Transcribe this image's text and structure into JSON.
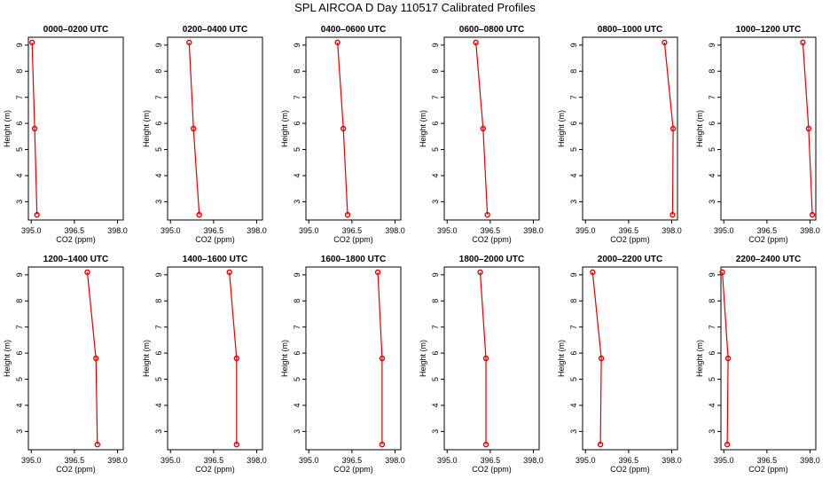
{
  "title": "SPL AIRCOA D  Day 110517  Calibrated Profiles",
  "chart_data": [
    {
      "type": "line",
      "title": "0000–0200 UTC",
      "xlabel": "CO2 (ppm)",
      "ylabel": "Height (m)",
      "xlim": [
        394.9,
        398.2
      ],
      "ylim": [
        2.3,
        9.3
      ],
      "x_ticks": [
        "395.0",
        "396.5",
        "398.0"
      ],
      "y_ticks": [
        "3",
        "4",
        "5",
        "6",
        "7",
        "8",
        "9"
      ],
      "color": "#dd0000",
      "points": [
        {
          "x": 395.03,
          "y": 9.1
        },
        {
          "x": 395.12,
          "y": 5.8
        },
        {
          "x": 395.2,
          "y": 2.5
        }
      ]
    },
    {
      "type": "line",
      "title": "0200–0400 UTC",
      "xlabel": "CO2 (ppm)",
      "ylabel": "Height (m)",
      "xlim": [
        394.9,
        398.2
      ],
      "ylim": [
        2.3,
        9.3
      ],
      "x_ticks": [
        "395.0",
        "396.5",
        "398.0"
      ],
      "y_ticks": [
        "3",
        "4",
        "5",
        "6",
        "7",
        "8",
        "9"
      ],
      "color": "#dd0000",
      "points": [
        {
          "x": 395.65,
          "y": 9.1
        },
        {
          "x": 395.8,
          "y": 5.8
        },
        {
          "x": 396.0,
          "y": 2.5
        }
      ]
    },
    {
      "type": "line",
      "title": "0400–0600 UTC",
      "xlabel": "CO2 (ppm)",
      "ylabel": "Height (m)",
      "xlim": [
        394.9,
        398.2
      ],
      "ylim": [
        2.3,
        9.3
      ],
      "x_ticks": [
        "395.0",
        "396.5",
        "398.0"
      ],
      "y_ticks": [
        "3",
        "4",
        "5",
        "6",
        "7",
        "8",
        "9"
      ],
      "color": "#dd0000",
      "points": [
        {
          "x": 396.0,
          "y": 9.1
        },
        {
          "x": 396.2,
          "y": 5.8
        },
        {
          "x": 396.35,
          "y": 2.5
        }
      ]
    },
    {
      "type": "line",
      "title": "0600–0800 UTC",
      "xlabel": "CO2 (ppm)",
      "ylabel": "Height (m)",
      "xlim": [
        394.9,
        398.2
      ],
      "ylim": [
        2.3,
        9.3
      ],
      "x_ticks": [
        "395.0",
        "396.5",
        "398.0"
      ],
      "y_ticks": [
        "3",
        "4",
        "5",
        "6",
        "7",
        "8",
        "9"
      ],
      "color": "#dd0000",
      "points": [
        {
          "x": 396.0,
          "y": 9.1
        },
        {
          "x": 396.25,
          "y": 5.8
        },
        {
          "x": 396.4,
          "y": 2.5
        }
      ]
    },
    {
      "type": "line",
      "title": "0800–1000 UTC",
      "xlabel": "CO2 (ppm)",
      "ylabel": "Height (m)",
      "xlim": [
        394.9,
        398.2
      ],
      "ylim": [
        2.3,
        9.3
      ],
      "x_ticks": [
        "395.0",
        "396.5",
        "398.0"
      ],
      "y_ticks": [
        "3",
        "4",
        "5",
        "6",
        "7",
        "8",
        "9"
      ],
      "color": "#dd0000",
      "points": [
        {
          "x": 397.75,
          "y": 9.1
        },
        {
          "x": 398.05,
          "y": 5.8
        },
        {
          "x": 398.03,
          "y": 2.5
        }
      ]
    },
    {
      "type": "line",
      "title": "1000–1200 UTC",
      "xlabel": "CO2 (ppm)",
      "ylabel": "Height (m)",
      "xlim": [
        394.9,
        398.2
      ],
      "ylim": [
        2.3,
        9.3
      ],
      "x_ticks": [
        "395.0",
        "396.5",
        "398.0"
      ],
      "y_ticks": [
        "3",
        "4",
        "5",
        "6",
        "7",
        "8",
        "9"
      ],
      "color": "#dd0000",
      "points": [
        {
          "x": 397.75,
          "y": 9.1
        },
        {
          "x": 397.95,
          "y": 5.8
        },
        {
          "x": 398.08,
          "y": 2.5
        }
      ]
    },
    {
      "type": "line",
      "title": "1200–1400 UTC",
      "xlabel": "CO2 (ppm)",
      "ylabel": "Height (m)",
      "xlim": [
        394.9,
        398.2
      ],
      "ylim": [
        2.3,
        9.3
      ],
      "x_ticks": [
        "395.0",
        "396.5",
        "398.0"
      ],
      "y_ticks": [
        "3",
        "4",
        "5",
        "6",
        "7",
        "8",
        "9"
      ],
      "color": "#dd0000",
      "points": [
        {
          "x": 396.95,
          "y": 9.1
        },
        {
          "x": 397.25,
          "y": 5.8
        },
        {
          "x": 397.3,
          "y": 2.5
        }
      ]
    },
    {
      "type": "line",
      "title": "1400–1600 UTC",
      "xlabel": "CO2 (ppm)",
      "ylabel": "Height (m)",
      "xlim": [
        394.9,
        398.2
      ],
      "ylim": [
        2.3,
        9.3
      ],
      "x_ticks": [
        "395.0",
        "396.5",
        "398.0"
      ],
      "y_ticks": [
        "3",
        "4",
        "5",
        "6",
        "7",
        "8",
        "9"
      ],
      "color": "#dd0000",
      "points": [
        {
          "x": 397.05,
          "y": 9.1
        },
        {
          "x": 397.3,
          "y": 5.8
        },
        {
          "x": 397.3,
          "y": 2.5
        }
      ]
    },
    {
      "type": "line",
      "title": "1600–1800 UTC",
      "xlabel": "CO2 (ppm)",
      "ylabel": "Height (m)",
      "xlim": [
        394.9,
        398.2
      ],
      "ylim": [
        2.3,
        9.3
      ],
      "x_ticks": [
        "395.0",
        "396.5",
        "398.0"
      ],
      "y_ticks": [
        "3",
        "4",
        "5",
        "6",
        "7",
        "8",
        "9"
      ],
      "color": "#dd0000",
      "points": [
        {
          "x": 397.4,
          "y": 9.1
        },
        {
          "x": 397.55,
          "y": 5.8
        },
        {
          "x": 397.55,
          "y": 2.5
        }
      ]
    },
    {
      "type": "line",
      "title": "1800–2000 UTC",
      "xlabel": "CO2 (ppm)",
      "ylabel": "Height (m)",
      "xlim": [
        394.9,
        398.2
      ],
      "ylim": [
        2.3,
        9.3
      ],
      "x_ticks": [
        "395.0",
        "396.5",
        "398.0"
      ],
      "y_ticks": [
        "3",
        "4",
        "5",
        "6",
        "7",
        "8",
        "9"
      ],
      "color": "#dd0000",
      "points": [
        {
          "x": 396.15,
          "y": 9.1
        },
        {
          "x": 396.35,
          "y": 5.8
        },
        {
          "x": 396.35,
          "y": 2.5
        }
      ]
    },
    {
      "type": "line",
      "title": "2000–2200 UTC",
      "xlabel": "CO2 (ppm)",
      "ylabel": "Height (m)",
      "xlim": [
        394.9,
        398.2
      ],
      "ylim": [
        2.3,
        9.3
      ],
      "x_ticks": [
        "395.0",
        "396.5",
        "398.0"
      ],
      "y_ticks": [
        "3",
        "4",
        "5",
        "6",
        "7",
        "8",
        "9"
      ],
      "color": "#dd0000",
      "points": [
        {
          "x": 395.25,
          "y": 9.1
        },
        {
          "x": 395.55,
          "y": 5.8
        },
        {
          "x": 395.52,
          "y": 2.5
        }
      ]
    },
    {
      "type": "line",
      "title": "2200–2400 UTC",
      "xlabel": "CO2 (ppm)",
      "ylabel": "Height (m)",
      "xlim": [
        394.9,
        398.2
      ],
      "ylim": [
        2.3,
        9.3
      ],
      "x_ticks": [
        "395.0",
        "396.5",
        "398.0"
      ],
      "y_ticks": [
        "3",
        "4",
        "5",
        "6",
        "7",
        "8",
        "9"
      ],
      "color": "#dd0000",
      "points": [
        {
          "x": 394.95,
          "y": 9.1
        },
        {
          "x": 395.15,
          "y": 5.8
        },
        {
          "x": 395.12,
          "y": 2.5
        }
      ]
    }
  ]
}
